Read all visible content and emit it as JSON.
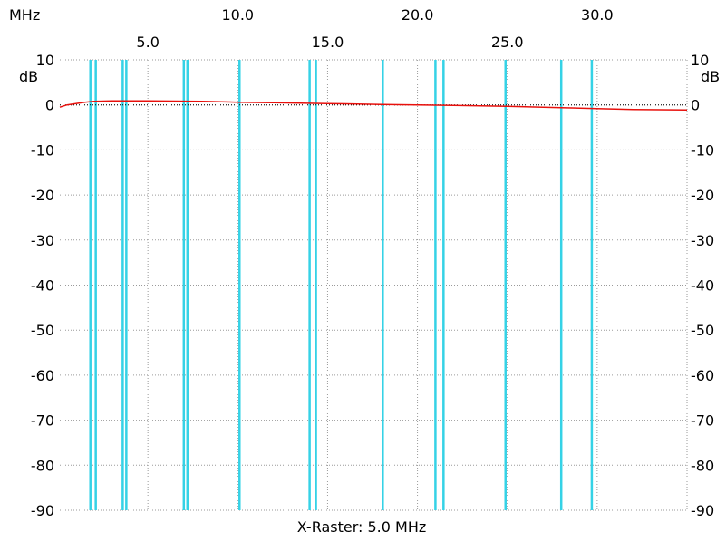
{
  "chart_data": {
    "type": "line",
    "x_unit": "MHz",
    "y_unit": "dB",
    "xlim": [
      0.1,
      35.0
    ],
    "ylim": [
      -90,
      10
    ],
    "x_ticks_upper": [
      "10.0",
      "20.0",
      "30.0"
    ],
    "x_ticks_lower": [
      "5.0",
      "15.0",
      "25.0"
    ],
    "y_ticks": [
      "10",
      "0",
      "-10",
      "-20",
      "-30",
      "-40",
      "-50",
      "-60",
      "-70",
      "-80",
      "-90"
    ],
    "reference_db": 0,
    "footer": "X-Raster: 5.0 MHz",
    "grid": true,
    "colors": {
      "trace": "#e8100c",
      "markers": "#35d2e6",
      "grid": "#9a9a9a",
      "reference": "#000000"
    },
    "markers_mhz": [
      1.8,
      2.1,
      3.6,
      3.8,
      7.0,
      7.2,
      10.1,
      14.0,
      14.35,
      18.07,
      21.0,
      21.45,
      24.9,
      28.0,
      29.7
    ],
    "series": [
      {
        "x": [
          0.1,
          0.5,
          1.0,
          1.5,
          2.0,
          3.0,
          5.0,
          8.0,
          10.0,
          12.0,
          15.0,
          18.0,
          20.0,
          22.0,
          25.0,
          28.0,
          30.0,
          32.0,
          35.0
        ],
        "y": [
          -0.5,
          0.0,
          0.3,
          0.6,
          0.8,
          0.9,
          0.9,
          0.8,
          0.6,
          0.5,
          0.3,
          0.1,
          0.0,
          -0.1,
          -0.3,
          -0.6,
          -0.8,
          -1.0,
          -1.1
        ]
      }
    ]
  }
}
